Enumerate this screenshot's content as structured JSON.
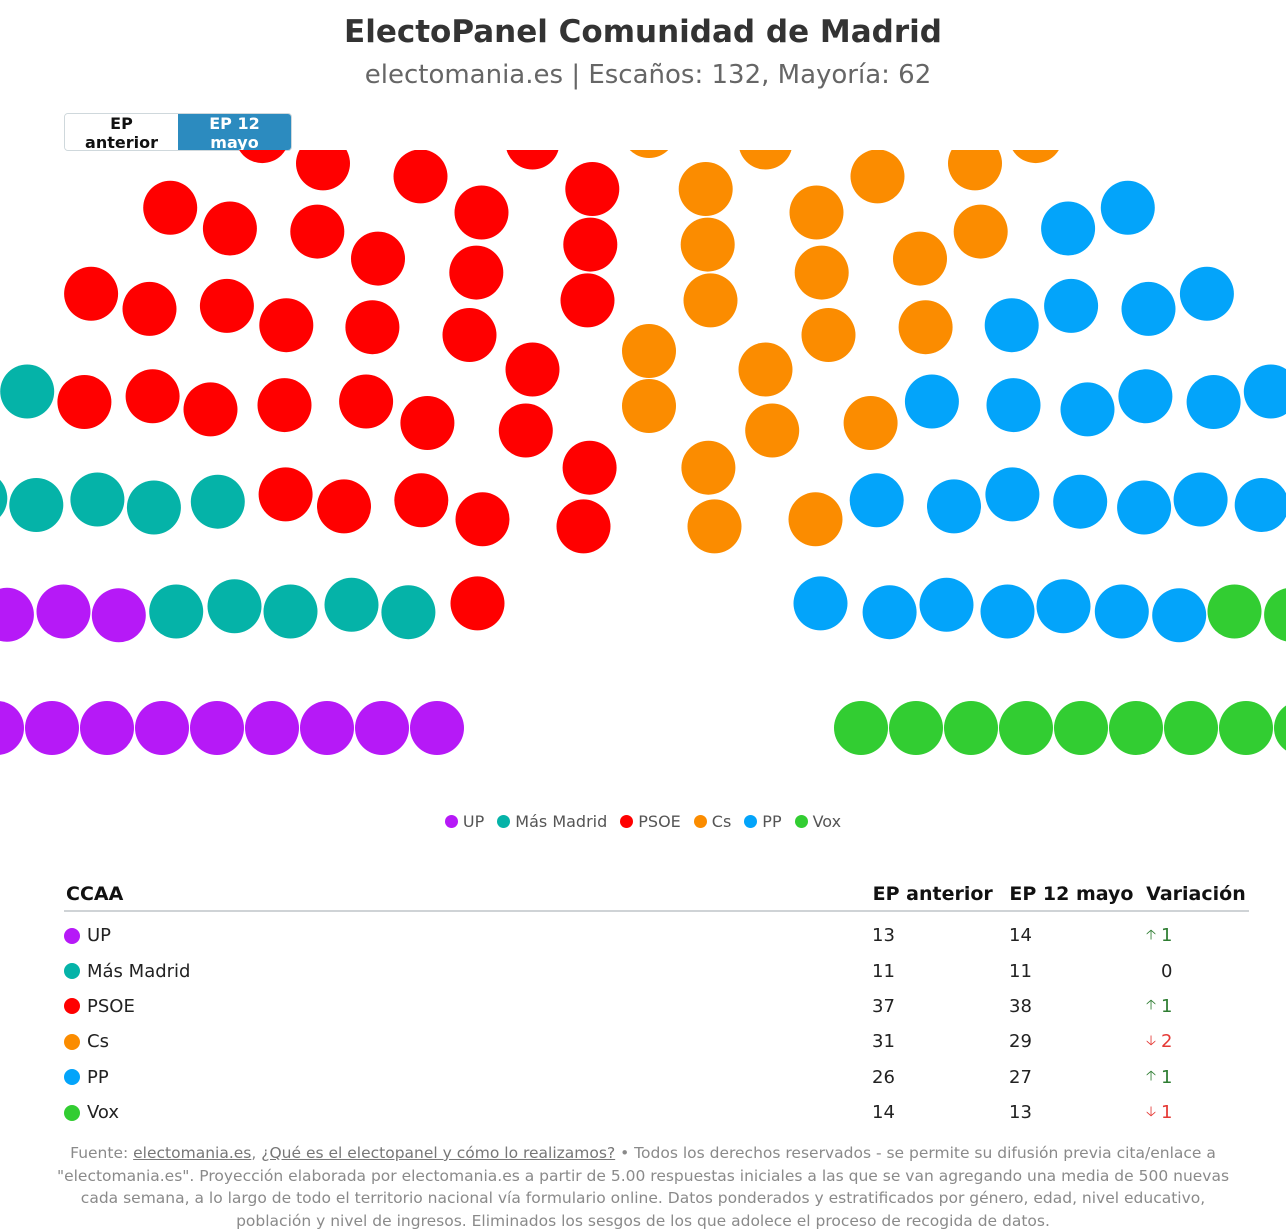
{
  "header": {
    "title": "ElectoPanel Comunidad de Madrid",
    "subtitle": "electomania.es | Escaños: 132, Mayoría: 62"
  },
  "toggle": {
    "previous_label": "EP anterior",
    "current_label": "EP 12 mayo",
    "selected": "EP 12 mayo"
  },
  "chart_data": {
    "type": "parliament",
    "total_seats": 132,
    "majority": 62,
    "parties": [
      {
        "name": "UP",
        "color": "#b619f7",
        "seats": 14
      },
      {
        "name": "Más Madrid",
        "color": "#05b3a8",
        "seats": 11
      },
      {
        "name": "PSOE",
        "color": "#ff0000",
        "seats": 38
      },
      {
        "name": "Cs",
        "color": "#fb8c00",
        "seats": 29
      },
      {
        "name": "PP",
        "color": "#03a4fa",
        "seats": 27
      },
      {
        "name": "Vox",
        "color": "#32cd32",
        "seats": 13
      }
    ]
  },
  "legend": [
    {
      "label": "UP",
      "color": "#b619f7"
    },
    {
      "label": "Más Madrid",
      "color": "#05b3a8"
    },
    {
      "label": "PSOE",
      "color": "#ff0000"
    },
    {
      "label": "Cs",
      "color": "#fb8c00"
    },
    {
      "label": "PP",
      "color": "#03a4fa"
    },
    {
      "label": "Vox",
      "color": "#32cd32"
    }
  ],
  "table": {
    "headers": {
      "name": "CCAA",
      "prev": "EP anterior",
      "curr": "EP 12 mayo",
      "var": "Variación"
    },
    "rows": [
      {
        "name": "UP",
        "color": "#b619f7",
        "prev": "13",
        "curr": "14",
        "var": "1",
        "dir": "up"
      },
      {
        "name": "Más Madrid",
        "color": "#05b3a8",
        "prev": "11",
        "curr": "11",
        "var": "0",
        "dir": "none"
      },
      {
        "name": "PSOE",
        "color": "#ff0000",
        "prev": "37",
        "curr": "38",
        "var": "1",
        "dir": "up"
      },
      {
        "name": "Cs",
        "color": "#fb8c00",
        "prev": "31",
        "curr": "29",
        "var": "2",
        "dir": "down"
      },
      {
        "name": "PP",
        "color": "#03a4fa",
        "prev": "26",
        "curr": "27",
        "var": "1",
        "dir": "up"
      },
      {
        "name": "Vox",
        "color": "#32cd32",
        "prev": "14",
        "curr": "13",
        "var": "1",
        "dir": "down"
      }
    ]
  },
  "footer": {
    "prefix": "Fuente: ",
    "link1": "electomania.es",
    "sep": ", ",
    "link2": "¿Qué es el electopanel y cómo lo realizamos?",
    "text": " • Todos los derechos reservados - se permite su difusión previa cita/enlace a \"electomania.es\". Proyección elaborada por electomania.es a partir de 5.00 respuestas iniciales a las que se van agregando una media de 500 nuevas cada semana, a lo largo de todo el territorio nacional vía formulario online. Datos ponderados y estratificados por género, edad, nivel educativo, población y nivel de ingresos. Eliminados los sesgos de los que adolece el proceso de recogida de datos."
  }
}
